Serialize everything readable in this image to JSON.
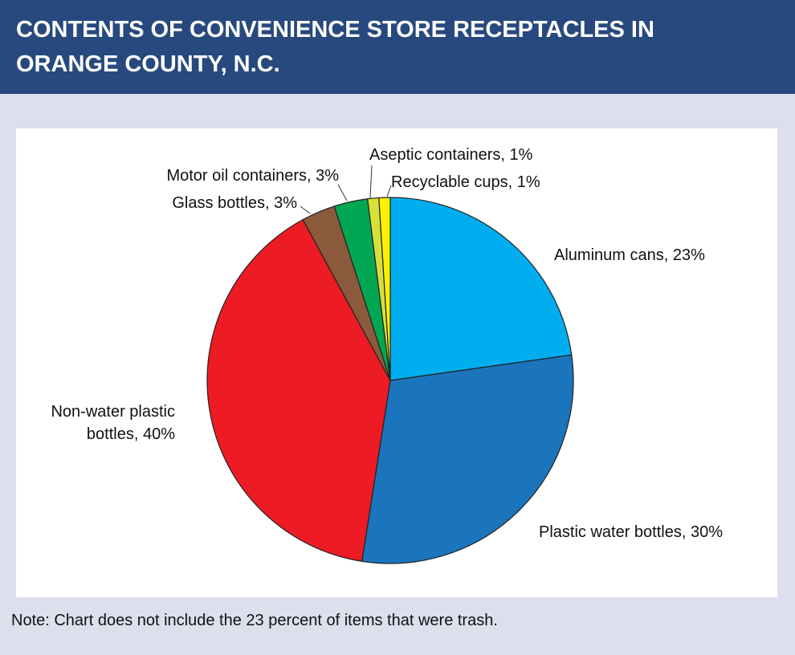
{
  "chart_data": {
    "type": "pie",
    "title": "CONTENTS OF CONVENIENCE STORE RECEPTACLES IN ORANGE COUNTY, N.C.",
    "categories": [
      "Aluminum cans, 23%",
      "Plastic water bottles, 30%",
      "Non-water plastic bottles, 40%",
      "Glass bottles, 3%",
      "Motor oil containers, 3%",
      "Aseptic containers, 1%",
      "Recyclable cups, 1%"
    ],
    "values": [
      23,
      30,
      40,
      3,
      3,
      1,
      1
    ],
    "colors": [
      "#00aeef",
      "#1a75bc",
      "#ed1c24",
      "#8b5a3c",
      "#00a651",
      "#d7e03a",
      "#fff200"
    ],
    "note": "Note: Chart does not include the 23 percent of items that were trash."
  }
}
